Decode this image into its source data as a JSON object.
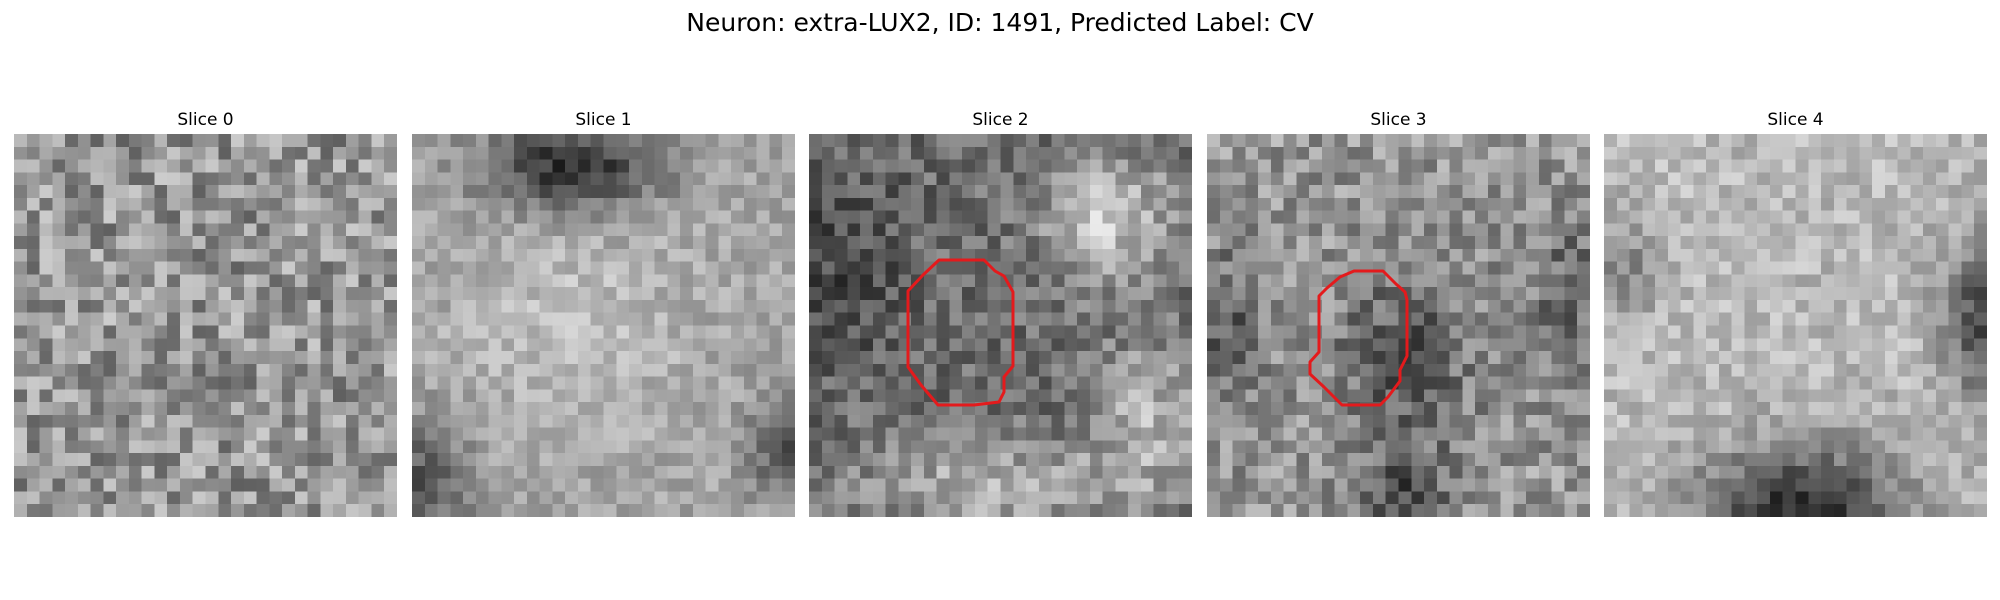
{
  "title": "Neuron: extra-LUX2, ID: 1491, Predicted Label: CV",
  "panels": [
    {
      "label": "Slice 0",
      "has_contour": false
    },
    {
      "label": "Slice 1",
      "has_contour": false
    },
    {
      "label": "Slice 2",
      "has_contour": true
    },
    {
      "label": "Slice 3",
      "has_contour": true
    },
    {
      "label": "Slice 4",
      "has_contour": false
    }
  ],
  "colors": {
    "contour": "#e41a1c",
    "background": "#ffffff"
  },
  "colormap": "gray"
}
